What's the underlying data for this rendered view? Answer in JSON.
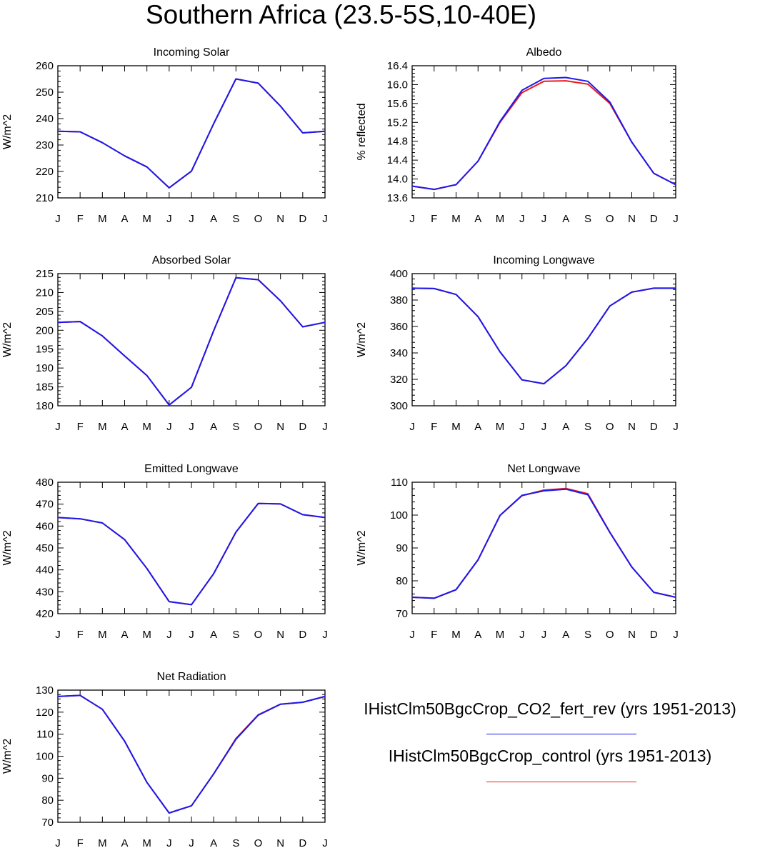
{
  "title": "Southern Africa (23.5-5S,10-40E)",
  "colors": {
    "rev": "#1a1aee",
    "control": "#ee1a1a"
  },
  "legend": [
    {
      "label": "IHistClm50BgcCrop_CO2_fert_rev (yrs 1951-2013)",
      "color": "#1a1aee"
    },
    {
      "label": "IHistClm50BgcCrop_control (yrs 1951-2013)",
      "color": "#ee1a1a"
    }
  ],
  "chart_data": [
    {
      "type": "line",
      "title": "Incoming Solar",
      "ylabel": "W/m^2",
      "categories": [
        "J",
        "F",
        "M",
        "A",
        "M",
        "J",
        "J",
        "A",
        "S",
        "O",
        "N",
        "D",
        "J"
      ],
      "ylim": [
        210,
        260
      ],
      "yticks": [
        210,
        220,
        230,
        240,
        250,
        260
      ],
      "ydecimals": 0,
      "series": [
        {
          "values": [
            235.2,
            235.0,
            230.9,
            225.9,
            221.7,
            213.8,
            220.1,
            238.1,
            255.0,
            253.4,
            244.7,
            234.6,
            235.2
          ]
        },
        {
          "values": [
            235.2,
            235.0,
            230.9,
            225.9,
            221.7,
            213.8,
            220.1,
            238.1,
            255.0,
            253.4,
            244.7,
            234.6,
            235.2
          ]
        }
      ]
    },
    {
      "type": "line",
      "title": "Albedo",
      "ylabel": "% reflected",
      "categories": [
        "J",
        "F",
        "M",
        "A",
        "M",
        "J",
        "J",
        "A",
        "S",
        "O",
        "N",
        "D",
        "J"
      ],
      "ylim": [
        13.6,
        16.4
      ],
      "yticks": [
        13.6,
        14.0,
        14.4,
        14.8,
        15.2,
        15.6,
        16.0,
        16.4
      ],
      "ydecimals": 1,
      "series": [
        {
          "values": [
            13.85,
            13.78,
            13.88,
            14.38,
            15.22,
            15.88,
            16.13,
            16.15,
            16.07,
            15.63,
            14.78,
            14.12,
            13.88
          ]
        },
        {
          "values": [
            13.85,
            13.78,
            13.88,
            14.38,
            15.2,
            15.83,
            16.07,
            16.08,
            16.01,
            15.6,
            14.78,
            14.12,
            13.88
          ]
        }
      ]
    },
    {
      "type": "line",
      "title": "Absorbed Solar",
      "ylabel": "W/m^2",
      "categories": [
        "J",
        "F",
        "M",
        "A",
        "M",
        "J",
        "J",
        "A",
        "S",
        "O",
        "N",
        "D",
        "J"
      ],
      "ylim": [
        180,
        215
      ],
      "yticks": [
        180,
        185,
        190,
        195,
        200,
        205,
        210,
        215
      ],
      "ydecimals": 0,
      "series": [
        {
          "values": [
            202.1,
            202.3,
            198.5,
            193.2,
            188.0,
            180.2,
            184.9,
            199.9,
            213.9,
            213.4,
            207.8,
            200.9,
            202.1
          ]
        },
        {
          "values": [
            202.1,
            202.3,
            198.5,
            193.2,
            188.0,
            180.2,
            184.9,
            199.9,
            213.9,
            213.4,
            207.8,
            200.9,
            202.1
          ]
        }
      ]
    },
    {
      "type": "line",
      "title": "Incoming Longwave",
      "ylabel": "W/m^2",
      "categories": [
        "J",
        "F",
        "M",
        "A",
        "M",
        "J",
        "J",
        "A",
        "S",
        "O",
        "N",
        "D",
        "J"
      ],
      "ylim": [
        300,
        400
      ],
      "yticks": [
        300,
        320,
        340,
        360,
        380,
        400
      ],
      "ydecimals": 0,
      "series": [
        {
          "values": [
            389.0,
            388.7,
            384.2,
            367.4,
            340.8,
            319.6,
            316.7,
            330.3,
            351.0,
            375.5,
            386.0,
            389.0,
            389.0
          ]
        },
        {
          "values": [
            389.0,
            388.7,
            384.2,
            367.4,
            340.8,
            319.6,
            316.7,
            330.3,
            351.0,
            375.5,
            386.0,
            389.0,
            389.0
          ]
        }
      ]
    },
    {
      "type": "line",
      "title": "Emitted Longwave",
      "ylabel": "W/m^2",
      "categories": [
        "J",
        "F",
        "M",
        "A",
        "M",
        "J",
        "J",
        "A",
        "S",
        "O",
        "N",
        "D",
        "J"
      ],
      "ylim": [
        420,
        480
      ],
      "yticks": [
        420,
        430,
        440,
        450,
        460,
        470,
        480
      ],
      "ydecimals": 0,
      "series": [
        {
          "values": [
            463.9,
            463.3,
            461.4,
            453.8,
            440.6,
            425.5,
            424.1,
            438.3,
            457.2,
            470.3,
            470.1,
            465.2,
            463.9
          ]
        },
        {
          "values": [
            463.9,
            463.3,
            461.4,
            453.8,
            440.6,
            425.5,
            424.1,
            438.3,
            457.2,
            470.3,
            470.1,
            465.2,
            463.9
          ]
        }
      ]
    },
    {
      "type": "line",
      "title": "Net Longwave",
      "ylabel": "W/m^2",
      "categories": [
        "J",
        "F",
        "M",
        "A",
        "M",
        "J",
        "J",
        "A",
        "S",
        "O",
        "N",
        "D",
        "J"
      ],
      "ylim": [
        70,
        110
      ],
      "yticks": [
        70,
        80,
        90,
        100,
        110
      ],
      "ydecimals": 0,
      "series": [
        {
          "values": [
            75.0,
            74.7,
            77.3,
            86.4,
            99.9,
            106.0,
            107.4,
            107.9,
            106.2,
            94.7,
            84.2,
            76.5,
            75.0
          ]
        },
        {
          "values": [
            75.0,
            74.7,
            77.3,
            86.4,
            99.9,
            105.9,
            107.6,
            108.1,
            106.5,
            94.8,
            84.2,
            76.5,
            75.0
          ]
        }
      ]
    },
    {
      "type": "line",
      "title": "Net Radiation",
      "ylabel": "W/m^2",
      "categories": [
        "J",
        "F",
        "M",
        "A",
        "M",
        "J",
        "J",
        "A",
        "S",
        "O",
        "N",
        "D",
        "J"
      ],
      "ylim": [
        70,
        130
      ],
      "yticks": [
        70,
        80,
        90,
        100,
        110,
        120,
        130
      ],
      "ydecimals": 0,
      "series": [
        {
          "values": [
            127.1,
            127.6,
            121.3,
            106.8,
            88.1,
            74.2,
            77.5,
            92.0,
            107.7,
            118.6,
            123.6,
            124.5,
            127.1
          ]
        },
        {
          "values": [
            127.1,
            127.6,
            121.3,
            106.8,
            88.1,
            74.2,
            77.5,
            92.0,
            108.0,
            118.8,
            123.6,
            124.5,
            127.1
          ]
        }
      ]
    }
  ]
}
